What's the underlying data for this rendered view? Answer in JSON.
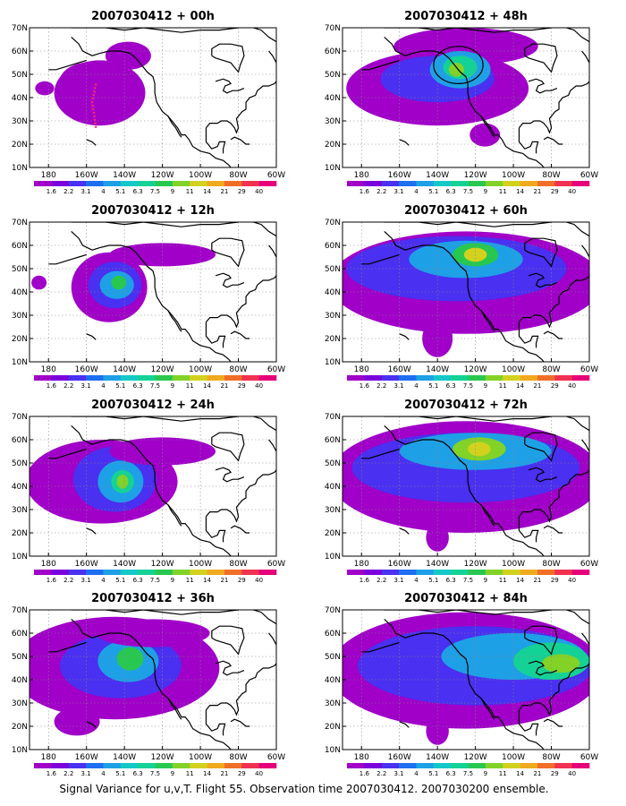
{
  "caption": "Signal Variance for u,v,T. Flight 55. Observation time 2007030412. 2007030200 ensemble.",
  "lat_ticks": [
    "10N",
    "20N",
    "30N",
    "40N",
    "50N",
    "60N",
    "70N"
  ],
  "lon_ticks": [
    "180",
    "160W",
    "140W",
    "120W",
    "100W",
    "80W",
    "60W"
  ],
  "colorbar": {
    "labels": [
      "1.6",
      "2.2",
      "3.1",
      "4",
      "5.1",
      "6.3",
      "7.5",
      "9",
      "11",
      "14",
      "21",
      "29",
      "40"
    ],
    "colors": [
      "#a000c8",
      "#7a00dc",
      "#4a30f0",
      "#1e6ef0",
      "#1ea0e6",
      "#14c8c8",
      "#14d296",
      "#28c850",
      "#82d228",
      "#d2d21e",
      "#f0aa1e",
      "#f06e28",
      "#f03250",
      "#e6007a"
    ]
  },
  "panels": [
    {
      "title": "2007030412 + 00h",
      "blobs": [
        {
          "cx": -153,
          "cy": 42,
          "rx": 24,
          "ry": 14,
          "lvl": 0
        },
        {
          "cx": -160,
          "cy": 45,
          "rx": 15,
          "ry": 10,
          "lvl": 0
        },
        {
          "cx": -138,
          "cy": 58,
          "rx": 12,
          "ry": 6,
          "lvl": 0
        },
        {
          "cx": -182,
          "cy": 44,
          "rx": 5,
          "ry": 3,
          "lvl": 0
        }
      ],
      "track": [
        [
          -155,
          46
        ],
        [
          -156,
          42
        ],
        [
          -157,
          38
        ],
        [
          -156,
          33
        ],
        [
          -155,
          27
        ]
      ]
    },
    {
      "title": "2007030412 + 48h",
      "blobs": [
        {
          "cx": -140,
          "cy": 44,
          "rx": 48,
          "ry": 16,
          "lvl": 0
        },
        {
          "cx": -125,
          "cy": 62,
          "rx": 38,
          "ry": 8,
          "lvl": 0
        },
        {
          "cx": -140,
          "cy": 48,
          "rx": 30,
          "ry": 10,
          "lvl": 2
        },
        {
          "cx": -128,
          "cy": 52,
          "rx": 16,
          "ry": 8,
          "lvl": 4
        },
        {
          "cx": -128,
          "cy": 53,
          "rx": 9,
          "ry": 5,
          "lvl": 6
        },
        {
          "cx": -130,
          "cy": 52,
          "rx": 4,
          "ry": 3,
          "lvl": 8
        },
        {
          "cx": -115,
          "cy": 24,
          "rx": 8,
          "ry": 5,
          "lvl": 0
        }
      ],
      "circle": {
        "cx": -129,
        "cy": 54,
        "rx": 13,
        "ry": 8
      }
    },
    {
      "title": "2007030412 + 12h",
      "blobs": [
        {
          "cx": -148,
          "cy": 42,
          "rx": 20,
          "ry": 15,
          "lvl": 0
        },
        {
          "cx": -145,
          "cy": 43,
          "rx": 14,
          "ry": 10,
          "lvl": 2
        },
        {
          "cx": -144,
          "cy": 43,
          "rx": 9,
          "ry": 6,
          "lvl": 4
        },
        {
          "cx": -143,
          "cy": 44,
          "rx": 4,
          "ry": 3,
          "lvl": 7
        },
        {
          "cx": -120,
          "cy": 56,
          "rx": 28,
          "ry": 5,
          "lvl": 0
        },
        {
          "cx": -185,
          "cy": 44,
          "rx": 4,
          "ry": 3,
          "lvl": 0
        }
      ]
    },
    {
      "title": "2007030412 + 60h",
      "blobs": [
        {
          "cx": -125,
          "cy": 44,
          "rx": 72,
          "ry": 22,
          "lvl": 0
        },
        {
          "cx": -130,
          "cy": 50,
          "rx": 58,
          "ry": 14,
          "lvl": 2
        },
        {
          "cx": -125,
          "cy": 54,
          "rx": 30,
          "ry": 8,
          "lvl": 4
        },
        {
          "cx": -120,
          "cy": 56,
          "rx": 12,
          "ry": 5,
          "lvl": 7
        },
        {
          "cx": -120,
          "cy": 56,
          "rx": 6,
          "ry": 3,
          "lvl": 9
        },
        {
          "cx": -140,
          "cy": 20,
          "rx": 8,
          "ry": 8,
          "lvl": 0
        }
      ]
    },
    {
      "title": "2007030412 + 24h",
      "blobs": [
        {
          "cx": -152,
          "cy": 42,
          "rx": 40,
          "ry": 18,
          "lvl": 0
        },
        {
          "cx": -145,
          "cy": 43,
          "rx": 22,
          "ry": 14,
          "lvl": 2
        },
        {
          "cx": -142,
          "cy": 42,
          "rx": 12,
          "ry": 9,
          "lvl": 4
        },
        {
          "cx": -141,
          "cy": 42,
          "rx": 6,
          "ry": 5,
          "lvl": 6
        },
        {
          "cx": -141,
          "cy": 42,
          "rx": 3,
          "ry": 3,
          "lvl": 8
        },
        {
          "cx": -120,
          "cy": 55,
          "rx": 28,
          "ry": 6,
          "lvl": 0
        }
      ]
    },
    {
      "title": "2007030412 + 72h",
      "blobs": [
        {
          "cx": -125,
          "cy": 44,
          "rx": 72,
          "ry": 24,
          "lvl": 0
        },
        {
          "cx": -125,
          "cy": 48,
          "rx": 60,
          "ry": 15,
          "lvl": 2
        },
        {
          "cx": -120,
          "cy": 55,
          "rx": 40,
          "ry": 8,
          "lvl": 4
        },
        {
          "cx": -118,
          "cy": 56,
          "rx": 14,
          "ry": 5,
          "lvl": 8
        },
        {
          "cx": -118,
          "cy": 56,
          "rx": 6,
          "ry": 3,
          "lvl": 9
        },
        {
          "cx": -140,
          "cy": 18,
          "rx": 6,
          "ry": 6,
          "lvl": 0
        }
      ]
    },
    {
      "title": "2007030412 + 36h",
      "blobs": [
        {
          "cx": -145,
          "cy": 45,
          "rx": 55,
          "ry": 22,
          "lvl": 0
        },
        {
          "cx": -142,
          "cy": 46,
          "rx": 32,
          "ry": 14,
          "lvl": 2
        },
        {
          "cx": -138,
          "cy": 48,
          "rx": 16,
          "ry": 9,
          "lvl": 4
        },
        {
          "cx": -137,
          "cy": 49,
          "rx": 7,
          "ry": 5,
          "lvl": 7
        },
        {
          "cx": -125,
          "cy": 60,
          "rx": 30,
          "ry": 6,
          "lvl": 0
        },
        {
          "cx": -165,
          "cy": 22,
          "rx": 12,
          "ry": 6,
          "lvl": 0
        }
      ]
    },
    {
      "title": "2007030412 + 84h",
      "blobs": [
        {
          "cx": -125,
          "cy": 44,
          "rx": 72,
          "ry": 25,
          "lvl": 0
        },
        {
          "cx": -120,
          "cy": 46,
          "rx": 62,
          "ry": 17,
          "lvl": 2
        },
        {
          "cx": -100,
          "cy": 50,
          "rx": 38,
          "ry": 10,
          "lvl": 4
        },
        {
          "cx": -80,
          "cy": 48,
          "rx": 20,
          "ry": 8,
          "lvl": 6
        },
        {
          "cx": -75,
          "cy": 47,
          "rx": 10,
          "ry": 4,
          "lvl": 8
        },
        {
          "cx": -140,
          "cy": 18,
          "rx": 6,
          "ry": 6,
          "lvl": 0
        }
      ]
    }
  ]
}
